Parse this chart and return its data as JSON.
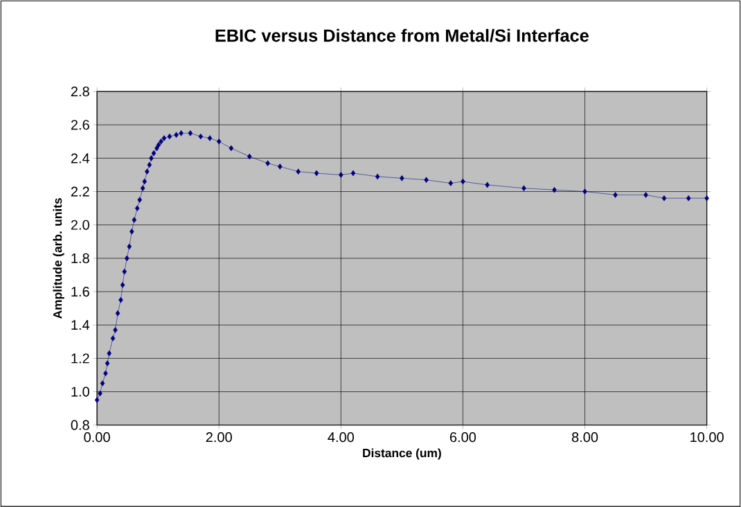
{
  "chart_data": {
    "type": "line",
    "title": "EBIC versus Distance from Metal/Si Interface",
    "xlabel": "Distance (um)",
    "ylabel": "Amplitude (arb. units",
    "xlim": [
      0,
      10
    ],
    "ylim": [
      0.8,
      2.8
    ],
    "xticks": [
      {
        "value": 0,
        "label": "0.00"
      },
      {
        "value": 2,
        "label": "2.00"
      },
      {
        "value": 4,
        "label": "4.00"
      },
      {
        "value": 6,
        "label": "6.00"
      },
      {
        "value": 8,
        "label": "8.00"
      },
      {
        "value": 10,
        "label": "10.00"
      }
    ],
    "yticks": [
      {
        "value": 0.8,
        "label": "0.8"
      },
      {
        "value": 1.0,
        "label": "1.0"
      },
      {
        "value": 1.2,
        "label": "1.2"
      },
      {
        "value": 1.4,
        "label": "1.4"
      },
      {
        "value": 1.6,
        "label": "1.6"
      },
      {
        "value": 1.8,
        "label": "1.8"
      },
      {
        "value": 2.0,
        "label": "2.0"
      },
      {
        "value": 2.2,
        "label": "2.2"
      },
      {
        "value": 2.4,
        "label": "2.4"
      },
      {
        "value": 2.6,
        "label": "2.6"
      },
      {
        "value": 2.8,
        "label": "2.8"
      }
    ],
    "grid": true,
    "marker": "diamond",
    "line_style": "solid",
    "series": [
      {
        "color": "#000080",
        "x": [
          0,
          0.05,
          0.09,
          0.14,
          0.17,
          0.2,
          0.26,
          0.3,
          0.34,
          0.39,
          0.42,
          0.45,
          0.49,
          0.53,
          0.57,
          0.61,
          0.66,
          0.7,
          0.75,
          0.78,
          0.82,
          0.86,
          0.89,
          0.93,
          0.98,
          1.01,
          1.05,
          1.1,
          1.19,
          1.3,
          1.38,
          1.53,
          1.7,
          1.85,
          2.0,
          2.2,
          2.5,
          2.8,
          3.0,
          3.3,
          3.6,
          4.0,
          4.2,
          4.6,
          5.0,
          5.4,
          5.8,
          6.0,
          6.4,
          7.0,
          7.5,
          8.0,
          8.5,
          9.0,
          9.3,
          9.7,
          10.0
        ],
        "values": [
          0.95,
          0.99,
          1.05,
          1.11,
          1.17,
          1.23,
          1.32,
          1.37,
          1.47,
          1.55,
          1.64,
          1.72,
          1.8,
          1.87,
          1.96,
          2.03,
          2.1,
          2.15,
          2.22,
          2.26,
          2.32,
          2.36,
          2.4,
          2.43,
          2.46,
          2.48,
          2.5,
          2.52,
          2.53,
          2.54,
          2.55,
          2.55,
          2.53,
          2.52,
          2.5,
          2.46,
          2.41,
          2.37,
          2.35,
          2.32,
          2.31,
          2.3,
          2.31,
          2.29,
          2.28,
          2.27,
          2.25,
          2.26,
          2.24,
          2.22,
          2.21,
          2.2,
          2.18,
          2.18,
          2.16,
          2.16,
          2.16
        ]
      }
    ]
  }
}
